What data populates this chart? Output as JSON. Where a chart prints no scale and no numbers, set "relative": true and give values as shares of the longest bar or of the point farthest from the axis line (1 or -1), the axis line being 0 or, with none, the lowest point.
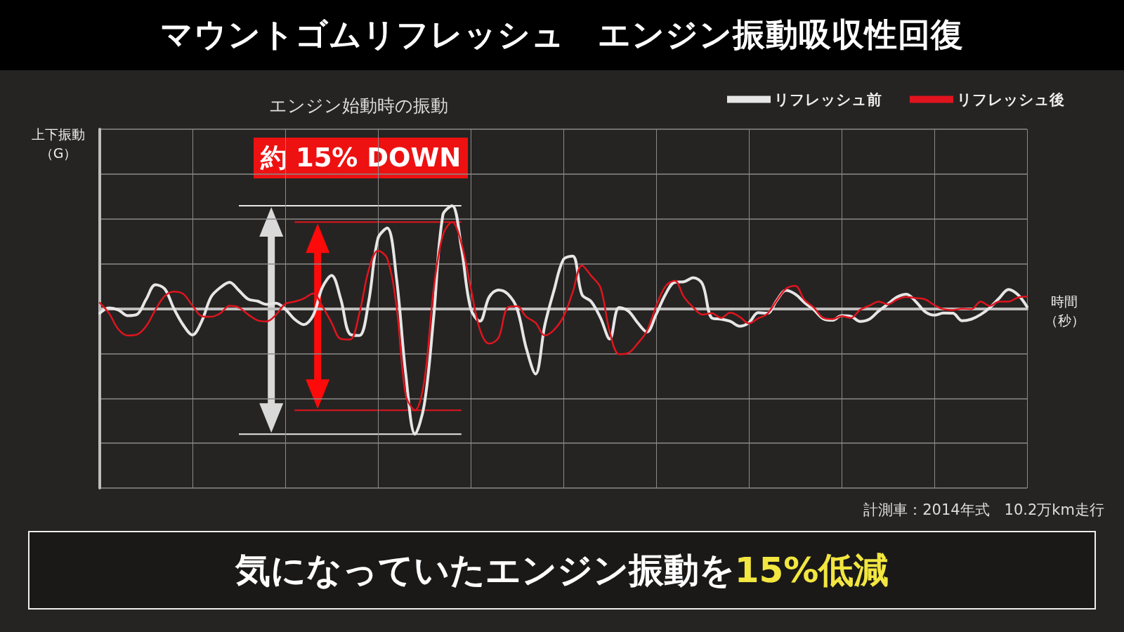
{
  "chart_data": {
    "type": "line",
    "title": "マウントゴムリフレッシュ　エンジン振動吸収性回復",
    "subtitle": "エンジン始動時の振動",
    "ylabel": "上下振動（G）",
    "xlabel": "時間（秒）",
    "relative": true,
    "grid": true,
    "legend": "top right",
    "marker": "none",
    "line_style": "solid",
    "annotations": [
      "約 15% DOWN",
      "計測車：2014年式　10.2万km走行",
      "気になっていたエンジン振動を",
      "15%低減"
    ],
    "categories": [
      null,
      null,
      null,
      null,
      null,
      null,
      null,
      null,
      null,
      null,
      null,
      null,
      null,
      null,
      null,
      null,
      null,
      null,
      null,
      null,
      null,
      null,
      null,
      null,
      null,
      null,
      null,
      null,
      null,
      null,
      null,
      null,
      null,
      null,
      null,
      null,
      null,
      null,
      null,
      null,
      null,
      null,
      null,
      null,
      null,
      null,
      null,
      null,
      null,
      null,
      null,
      null,
      null,
      null,
      null,
      null,
      null,
      null,
      null,
      null,
      null,
      null,
      null,
      null,
      null,
      null,
      null,
      null,
      null,
      null,
      null,
      null,
      null,
      null,
      null,
      null,
      null,
      null,
      null,
      null,
      null,
      null,
      null,
      null,
      null,
      null,
      null,
      null,
      null,
      null,
      null,
      null,
      null,
      null,
      null,
      null,
      null,
      null,
      null,
      null,
      null
    ],
    "series": [
      {
        "name": "リフレッシュ前",
        "color": "#e6e6e6",
        "values": [
          -0.037,
          0.006,
          -0.01,
          -0.056,
          -0.047,
          0.074,
          0.19,
          0.158,
          0,
          -0.13,
          -0.21,
          -0.1,
          0.093,
          0.168,
          0.21,
          0.145,
          0.076,
          0.06,
          0.034,
          0.043,
          -0.004,
          -0.084,
          -0.127,
          -0.056,
          0.168,
          0.264,
          0.074,
          -0.205,
          -0.214,
          0.056,
          0.559,
          0.642,
          0.242,
          -0.521,
          -1,
          -0.764,
          -0.074,
          0.745,
          0.82,
          0.484,
          0,
          -0.1,
          0.093,
          0.149,
          0.117,
          0,
          -0.317,
          -0.521,
          -0.13,
          0.149,
          0.391,
          0.419,
          0.112,
          0.056,
          -0.074,
          -0.242,
          0.009,
          -0.019,
          -0.112,
          -0.186,
          -0.047,
          0.112,
          0.21,
          0.214,
          0.246,
          0.196,
          -0.074,
          -0.084,
          -0.102,
          -0.14,
          -0.112,
          -0.032,
          -0.037,
          0.065,
          0.145,
          0.115,
          0.048,
          -0.009,
          -0.08,
          -0.093,
          -0.056,
          -0.061,
          -0.102,
          -0.084,
          -0.019,
          0.037,
          0.093,
          0.115,
          0.056,
          -0.024,
          -0.052,
          -0.035,
          -0.037,
          -0.097,
          -0.084,
          -0.047,
          0.009,
          0.084,
          0.153,
          0.112,
          0.015
        ]
      },
      {
        "name": "リフレッシュ後",
        "color": "#e0141e",
        "values": [
          0.047,
          -0.037,
          -0.164,
          -0.214,
          -0.207,
          -0.14,
          -0.01,
          0.1,
          0.136,
          0.117,
          0.024,
          -0.06,
          -0.065,
          -0.037,
          0.022,
          0.009,
          -0.047,
          -0.093,
          -0.102,
          -0.05,
          0.037,
          0.056,
          0.08,
          0.121,
          0.019,
          -0.112,
          -0.242,
          -0.246,
          -0.037,
          0.307,
          0.462,
          0.4,
          0.019,
          -0.689,
          -0.81,
          -0.577,
          0.149,
          0.587,
          0.69,
          0.521,
          0.168,
          -0.168,
          -0.279,
          -0.233,
          0.009,
          0.019,
          -0.065,
          -0.112,
          -0.214,
          -0.168,
          -0.065,
          0.13,
          0.344,
          0.261,
          0.168,
          -0.186,
          -0.363,
          -0.354,
          -0.279,
          -0.179,
          0.019,
          0.177,
          0.223,
          0.093,
          0.009,
          -0.047,
          -0.037,
          -0.074,
          -0.032,
          -0.065,
          -0.117,
          -0.078,
          -0.041,
          0.065,
          0.158,
          0.182,
          0.069,
          0.009,
          -0.074,
          -0.084,
          -0.06,
          -0.074,
          -0.009,
          0.024,
          0.056,
          0.034,
          0.074,
          0.093,
          0.084,
          0.074,
          0.028,
          -0.004,
          -0.011,
          0,
          -0.004,
          0.056,
          0.022,
          0.056,
          0.056,
          0.088,
          0.097
        ]
      }
    ]
  }
}
